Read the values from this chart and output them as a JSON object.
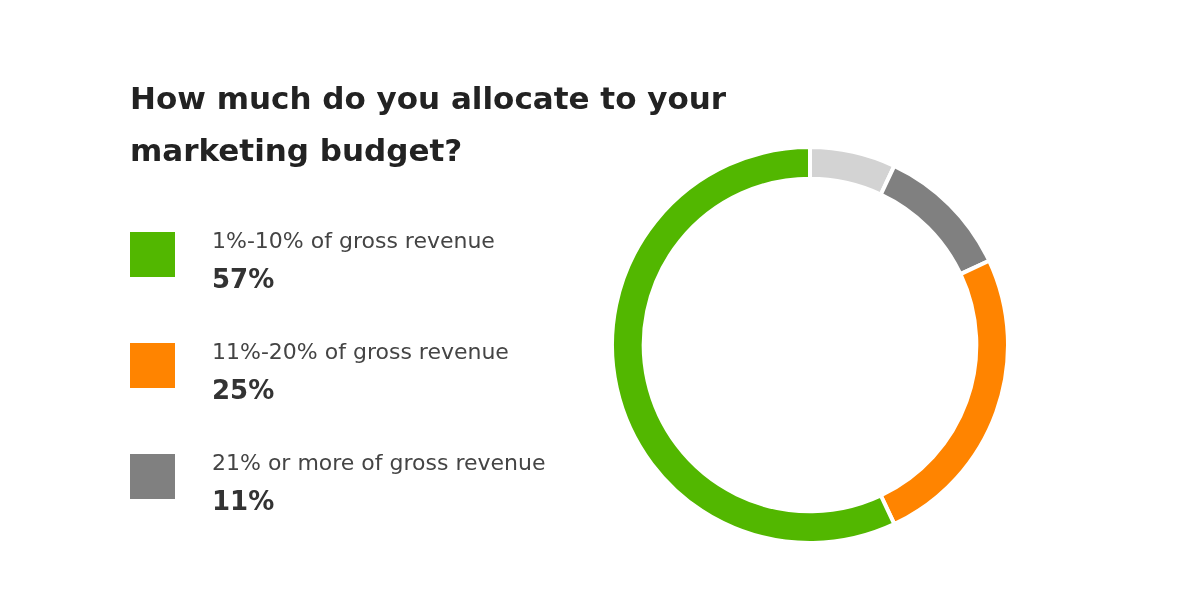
{
  "chart_data": {
    "type": "donut",
    "title": "How much do you allocate to your marketing budget?",
    "categories": [
      "1%-10% of gross revenue",
      "11%-20% of gross revenue",
      "21% or more of gross revenue",
      null
    ],
    "values": [
      57,
      25,
      11,
      7
    ],
    "colors": [
      "#52b700",
      "#ff8400",
      "#808080",
      "#d3d3d3"
    ],
    "value_labels": [
      "57%",
      "25%",
      "11%",
      null
    ],
    "legend": "left"
  }
}
